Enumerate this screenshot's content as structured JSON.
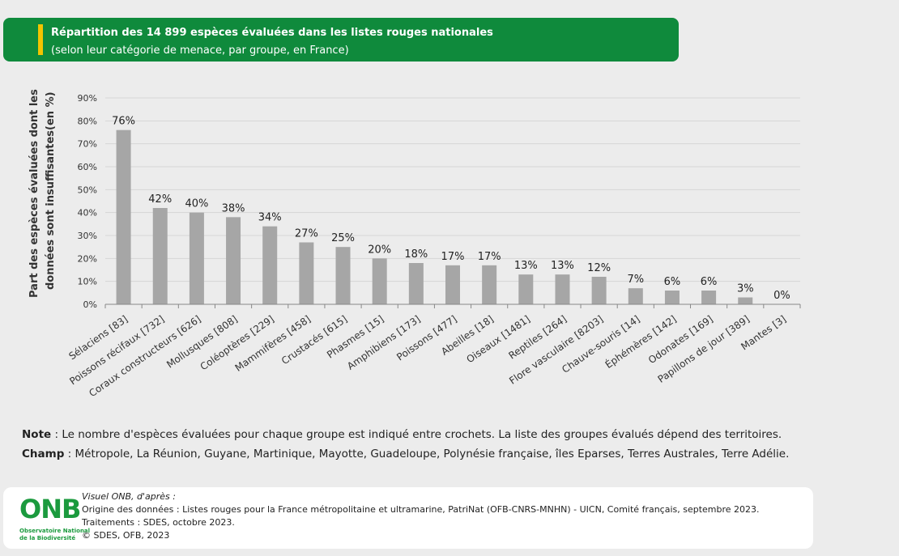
{
  "title": {
    "main": "Répartition des 14 899 espèces évaluées dans les listes rouges nationales",
    "sub": "(selon leur catégorie de menace, par groupe, en France)"
  },
  "chart_data": {
    "type": "bar",
    "ylabel_line1": "Part des espèces évaluées dont les",
    "ylabel_line2": "données sont insuffisantes(en %)",
    "ylim": [
      0,
      90
    ],
    "yticks": [
      "0%",
      "10%",
      "20%",
      "30%",
      "40%",
      "50%",
      "60%",
      "70%",
      "80%",
      "90%"
    ],
    "grid": true,
    "bar_color": "#a6a6a6",
    "categories": [
      "Sélaciens [83]",
      "Poissons récifaux [732]",
      "Coraux constructeurs [626]",
      "Mollusques [808]",
      "Coléoptères [229]",
      "Mammifères [458]",
      "Crustacés [615]",
      "Phasmes [15]",
      "Amphibiens [173]",
      "Poissons [477]",
      "Abeilles [18]",
      "Oiseaux [1481]",
      "Reptiles [264]",
      "Flore vasculaire [8203]",
      "Chauve-souris [14]",
      "Éphémères [142]",
      "Odonates [169]",
      "Papillons de jour [389]",
      "Mantes [3]"
    ],
    "values": [
      76,
      42,
      40,
      38,
      34,
      27,
      25,
      20,
      18,
      17,
      17,
      13,
      13,
      12,
      7,
      6,
      6,
      3,
      0
    ],
    "data_labels": [
      "76%",
      "42%",
      "40%",
      "38%",
      "34%",
      "27%",
      "25%",
      "20%",
      "18%",
      "17%",
      "17%",
      "13%",
      "13%",
      "12%",
      "7%",
      "6%",
      "6%",
      "3%",
      "0%"
    ]
  },
  "notes": {
    "note_label": "Note",
    "note_text": " : Le nombre d'espèces évaluées pour chaque groupe est indiqué entre crochets. La liste des groupes évalués dépend des territoires.",
    "champ_label": "Champ",
    "champ_text": " : Métropole, La Réunion, Guyane, Martinique, Mayotte, Guadeloupe, Polynésie française, îles Eparses, Terres Australes, Terre Adélie."
  },
  "source": {
    "logo_text": "ONB",
    "logo_sub1": "Observatoire National",
    "logo_sub2": "de la Biodiversité",
    "visuel": "Visuel ONB, d'après :",
    "origine": "Origine des données : Listes rouges pour la France métropolitaine et ultramarine, PatriNat (OFB-CNRS-MNHN) - UICN, Comité français, septembre 2023.",
    "traitements": "Traitements : SDES, octobre 2023.",
    "copyright": "© SDES, OFB, 2023"
  },
  "colors": {
    "banner": "#0f8a3c",
    "accent": "#f2c400",
    "logo": "#1b9a3e"
  }
}
